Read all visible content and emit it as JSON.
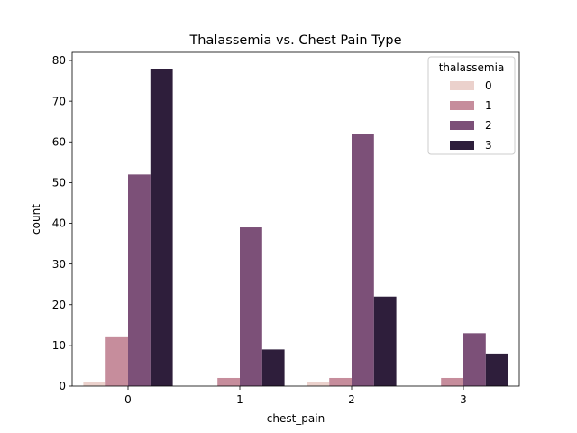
{
  "chart_data": {
    "type": "bar",
    "title": "Thalassemia vs. Chest Pain Type",
    "xlabel": "chest_pain",
    "ylabel": "count",
    "categories": [
      "0",
      "1",
      "2",
      "3"
    ],
    "ylim": [
      0,
      82
    ],
    "yticks": [
      0,
      10,
      20,
      30,
      40,
      50,
      60,
      70,
      80
    ],
    "grid": false,
    "legend": {
      "title": "thalassemia",
      "placement": "top-right"
    },
    "series": [
      {
        "name": "0",
        "color": "#ebd1cc",
        "values": [
          1,
          0,
          1,
          0
        ]
      },
      {
        "name": "1",
        "color": "#c68d9c",
        "values": [
          12,
          2,
          2,
          2
        ]
      },
      {
        "name": "2",
        "color": "#7c5078",
        "values": [
          52,
          39,
          62,
          13
        ]
      },
      {
        "name": "3",
        "color": "#2e1e3b",
        "values": [
          78,
          9,
          22,
          8
        ]
      }
    ]
  }
}
